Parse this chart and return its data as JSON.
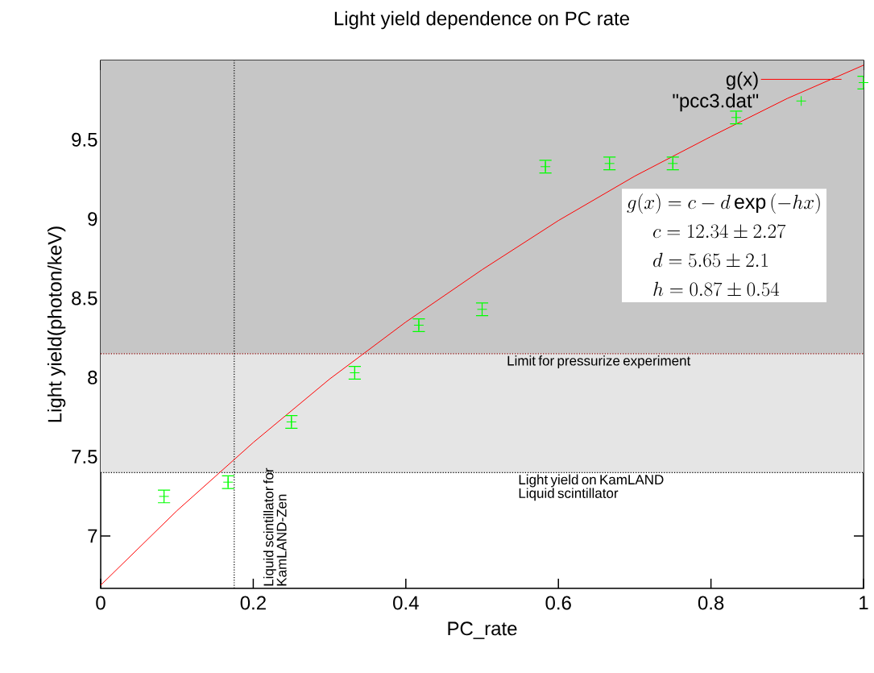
{
  "chart_data": {
    "type": "scatter",
    "title": "Light yield dependence on PC rate",
    "xlabel": "PC_rate",
    "ylabel": "Light yield(photon/keV)",
    "xlim": [
      0,
      1
    ],
    "ylim": [
      6.67,
      10
    ],
    "xticks": [
      0,
      0.2,
      0.4,
      0.6,
      0.8,
      1
    ],
    "yticks": [
      7,
      7.5,
      8,
      8.5,
      9,
      9.5
    ],
    "grid": false,
    "legend": "top right",
    "series": [
      {
        "name": "g(x)",
        "type": "line",
        "color": "#ff0000",
        "x": [
          0,
          0.1,
          0.2,
          0.3,
          0.4,
          0.5,
          0.6,
          0.7,
          0.8,
          0.9,
          1
        ],
        "values": [
          6.69,
          7.16,
          7.59,
          7.99,
          8.35,
          8.68,
          8.99,
          9.27,
          9.52,
          9.76,
          9.97
        ]
      },
      {
        "name": "\"pcc3.dat\"",
        "marker": "cross",
        "color": "#00ff00",
        "x": [
          0.083,
          0.167,
          0.25,
          0.333,
          0.417,
          0.5,
          0.583,
          0.667,
          0.75,
          0.833,
          1
        ],
        "values": [
          7.25,
          7.34,
          7.72,
          8.03,
          8.33,
          8.43,
          9.33,
          9.35,
          9.35,
          9.64,
          9.86
        ],
        "errors": [
          0.04,
          0.04,
          0.04,
          0.04,
          0.04,
          0.04,
          0.04,
          0.04,
          0.04,
          0.04,
          0.04
        ]
      }
    ],
    "bands": [
      {
        "axis": "y",
        "from": 7.4,
        "to": 8.15,
        "color": "#e5e5e5"
      },
      {
        "axis": "y",
        "from": 8.15,
        "to": 10,
        "color": "#c6c6c6"
      }
    ],
    "ref_lines": [
      {
        "axis": "x",
        "value": 0.175,
        "label": "Liquid scintillator for KamLAND-Zen",
        "color": "#000000",
        "line_style": "dotted"
      },
      {
        "axis": "y",
        "value": 8.15,
        "label": "Limit for pressurize experiment",
        "color": "#8b0000",
        "line_style": "dotted"
      },
      {
        "axis": "y",
        "value": 7.4,
        "label": "Light yield on  KamLAND Liquid scintillator",
        "color": "#000000",
        "line_style": "dotted"
      }
    ],
    "annotations": [
      "g(x) = c - d\\exp\\left(-hx\\right)",
      "c = 12.34 \\pm 2.27",
      "d = 5.65 \\pm 2.1",
      "h = 0.87 \\pm 0.54"
    ]
  }
}
